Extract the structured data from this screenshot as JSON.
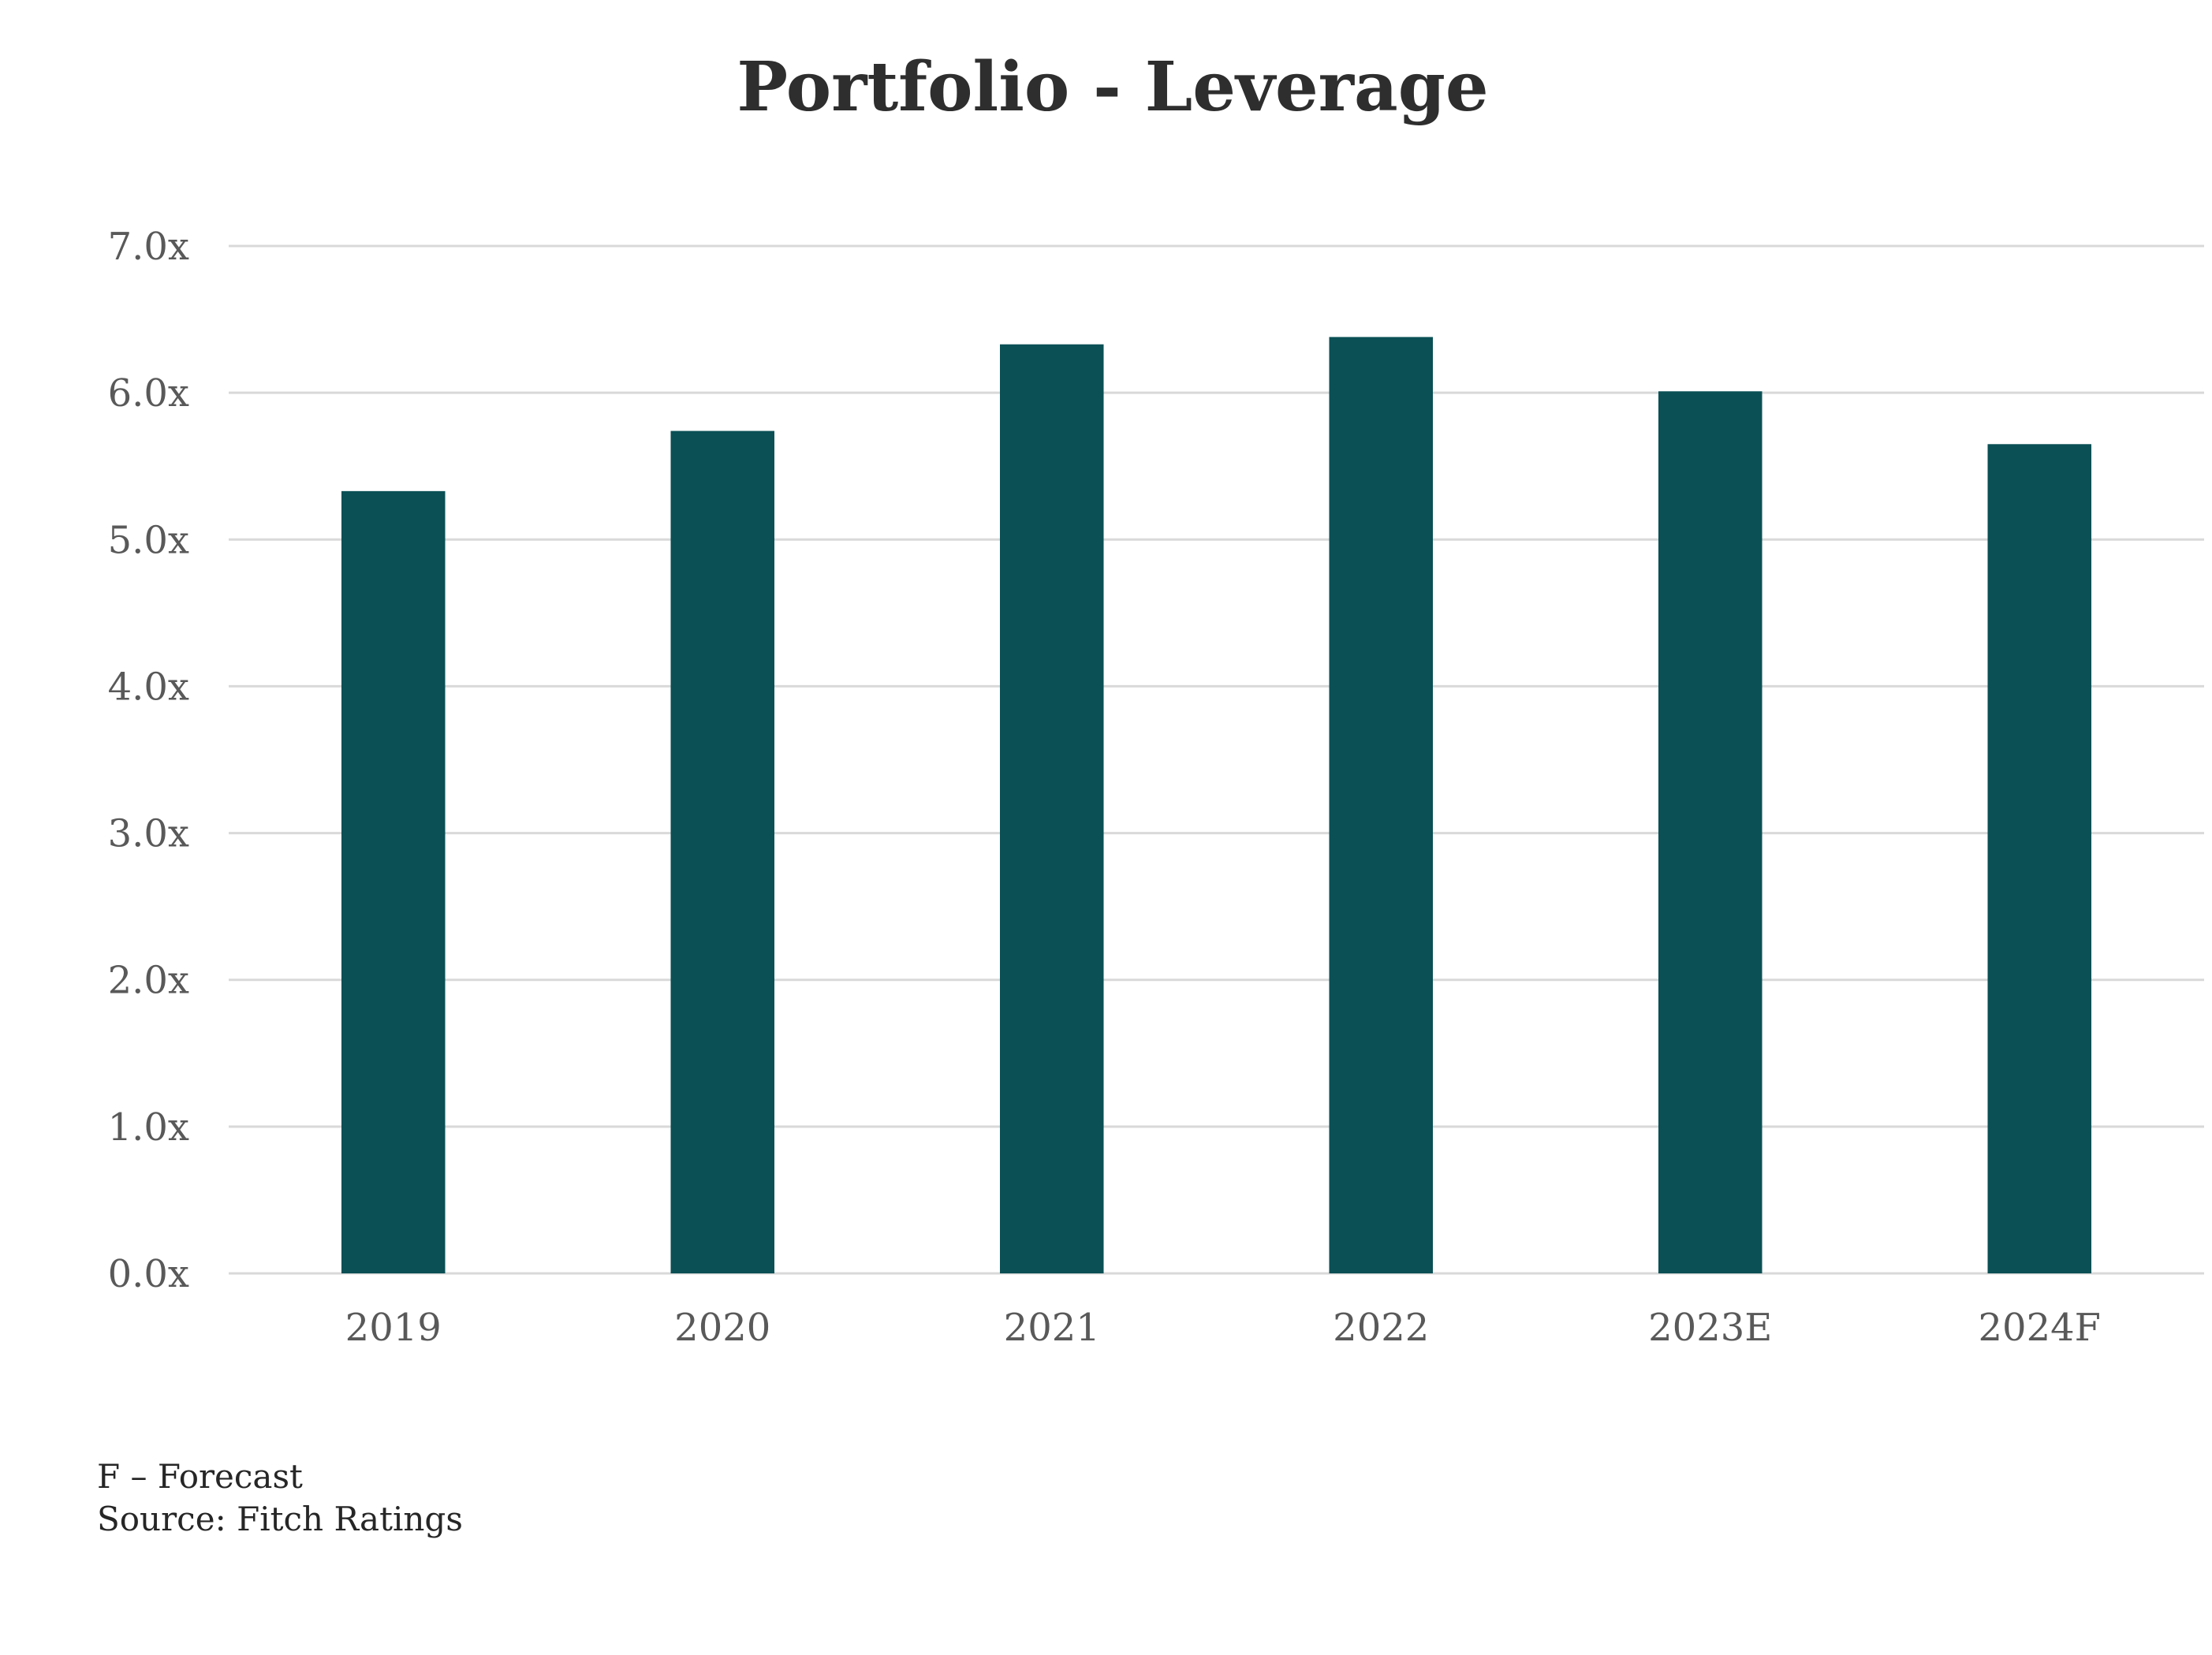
{
  "chart_data": {
    "type": "bar",
    "title": "Portfolio - Leverage",
    "xlabel": "",
    "ylabel": "",
    "categories": [
      "2019",
      "2020",
      "2021",
      "2022",
      "2023E",
      "2024F"
    ],
    "values": [
      5.33,
      5.74,
      6.33,
      6.38,
      6.01,
      5.65
    ],
    "ylim": [
      0,
      7
    ],
    "yticks": [
      0,
      1,
      2,
      3,
      4,
      5,
      6,
      7
    ],
    "ytick_labels": [
      "0.0x",
      "1.0x",
      "2.0x",
      "3.0x",
      "4.0x",
      "5.0x",
      "6.0x",
      "7.0x"
    ],
    "grid": true,
    "legend": "none",
    "bar_color": "#0a5055"
  },
  "notes": {
    "forecast_note": "F – Forecast",
    "source": "Source: Fitch Ratings"
  }
}
